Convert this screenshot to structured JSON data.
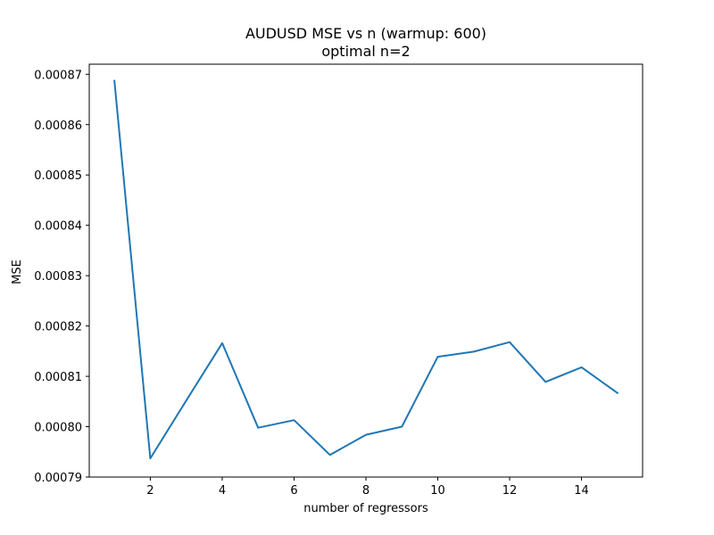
{
  "chart_data": {
    "type": "line",
    "title": "AUDUSD MSE vs n (warmup: 600)",
    "subtitle": "optimal n=2",
    "xlabel": "number of regressors",
    "ylabel": "MSE",
    "xlim": [
      0.3,
      15.7
    ],
    "ylim": [
      0.00079,
      0.000872
    ],
    "xticks": [
      2,
      4,
      6,
      8,
      10,
      12,
      14
    ],
    "xtick_labels": [
      "2",
      "4",
      "6",
      "8",
      "10",
      "12",
      "14"
    ],
    "yticks": [
      0.00079,
      0.0008,
      0.00081,
      0.00082,
      0.00083,
      0.00084,
      0.00085,
      0.00086,
      0.00087
    ],
    "ytick_labels": [
      "0.00079",
      "0.00080",
      "0.00081",
      "0.00082",
      "0.00083",
      "0.00084",
      "0.00085",
      "0.00086",
      "0.00087"
    ],
    "grid": false,
    "series": [
      {
        "color": "#1f77b4",
        "x": [
          1,
          2,
          3,
          4,
          5,
          6,
          7,
          8,
          9,
          10,
          11,
          12,
          13,
          14,
          15
        ],
        "values": [
          0.0008687,
          0.0007937,
          0.0008052,
          0.0008166,
          0.0007998,
          0.0008013,
          0.0007944,
          0.0007984,
          0.0008,
          0.0008139,
          0.0008149,
          0.0008168,
          0.0008089,
          0.0008118,
          0.0008067
        ]
      }
    ]
  }
}
